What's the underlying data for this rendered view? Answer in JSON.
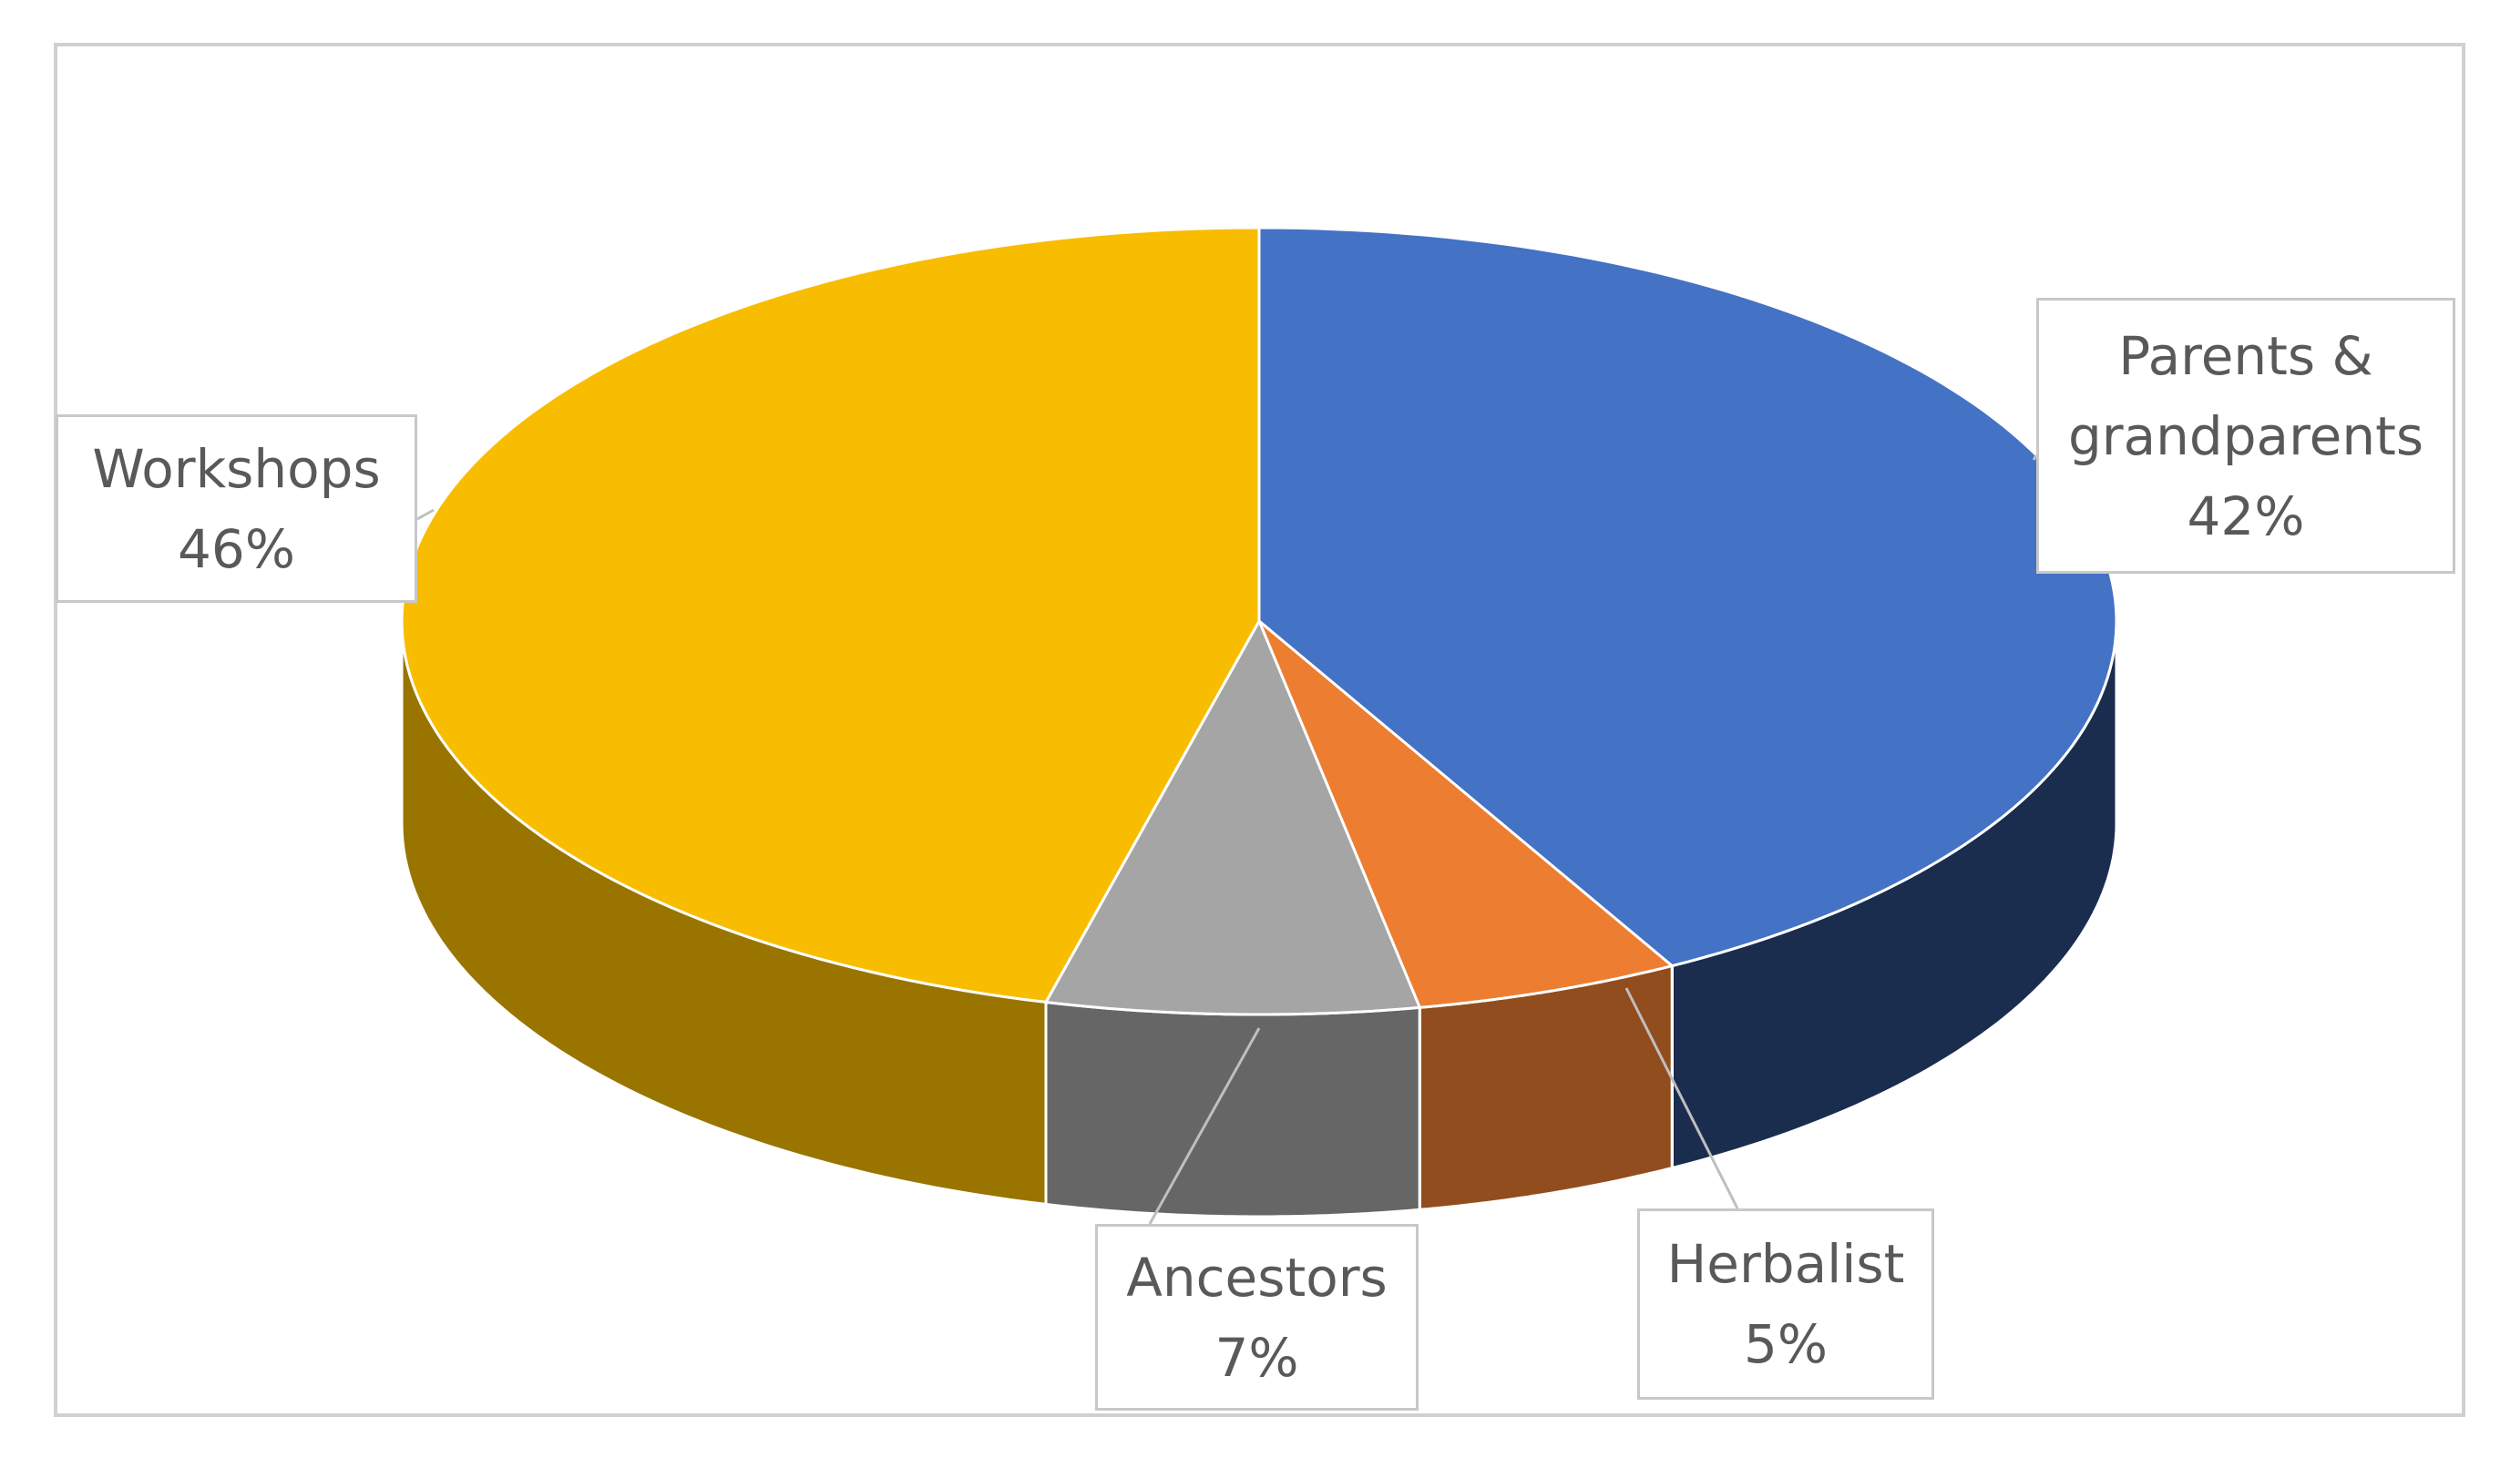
{
  "chart_data": {
    "type": "pie3d",
    "categories": [
      "Parents & grandparents",
      "Herbalist",
      "Ancestors",
      "Workshops"
    ],
    "values": [
      42,
      5,
      7,
      46
    ],
    "value_labels": [
      "42%",
      "5%",
      "7%",
      "46%"
    ],
    "colors": [
      "#4472c4",
      "#ed7d31",
      "#a5a5a5",
      "#f8bd00"
    ]
  }
}
